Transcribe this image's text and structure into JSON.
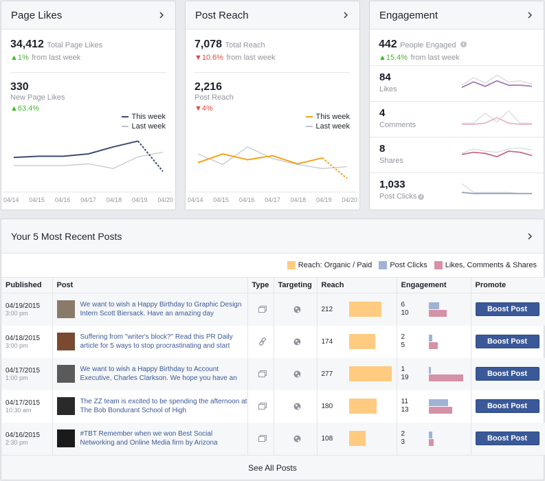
{
  "page_likes": {
    "title": "Page Likes",
    "total": "34,412",
    "total_label": "Total Page Likes",
    "total_change": "1%",
    "total_change_suffix": "from last week",
    "new": "330",
    "new_label": "New Page Likes",
    "new_change": "63.4%",
    "legend_this": "This week",
    "legend_last": "Last week",
    "x_labels": [
      "04/14",
      "04/15",
      "04/16",
      "04/17",
      "04/18",
      "04/19",
      "04/20"
    ],
    "this_week": [
      54,
      56,
      56,
      60,
      72,
      82,
      30
    ],
    "last_week": [
      40,
      40,
      40,
      43,
      35,
      55,
      63
    ],
    "colors": {
      "this": "#3b4b70",
      "last": "#bfc3c9"
    }
  },
  "post_reach": {
    "title": "Post Reach",
    "total": "7,078",
    "total_label": "Total Reach",
    "total_change": "10.6%",
    "total_change_suffix": "from last week",
    "reach": "2,216",
    "reach_label": "Post Reach",
    "reach_change": "4%",
    "legend_this": "This week",
    "legend_last": "Last week",
    "x_labels": [
      "04/14",
      "04/15",
      "04/16",
      "04/17",
      "04/18",
      "04/19",
      "04/20"
    ],
    "this_week": [
      45,
      60,
      50,
      57,
      43,
      53,
      18
    ],
    "last_week": [
      60,
      42,
      72,
      52,
      42,
      35,
      38
    ],
    "colors": {
      "this": "#f7a21b",
      "last": "#bfc3c9"
    }
  },
  "engagement": {
    "title": "Engagement",
    "total": "442",
    "total_label": "People Engaged",
    "total_change": "15.4%",
    "total_change_suffix": "from last week",
    "rows": [
      {
        "value": "84",
        "label": "Likes",
        "color": "#a078b8",
        "this": [
          3,
          8,
          4,
          9,
          5,
          5,
          4
        ],
        "last": [
          5,
          12,
          7,
          14,
          8,
          9,
          6
        ]
      },
      {
        "value": "4",
        "label": "Comments",
        "color": "#e8b6c4",
        "this": [
          2,
          2,
          3,
          8,
          3,
          2,
          2
        ],
        "last": [
          3,
          3,
          12,
          4,
          14,
          3,
          3
        ]
      },
      {
        "value": "8",
        "label": "Shares",
        "color": "#c56c88",
        "this": [
          7,
          9,
          8,
          5,
          10,
          9,
          6
        ],
        "last": [
          8,
          12,
          10,
          9,
          12,
          13,
          11
        ]
      },
      {
        "value": "1,033",
        "label": "Post Clicks",
        "color": "#8c9eba",
        "this": [
          5,
          4,
          4,
          4,
          4,
          4,
          4
        ],
        "last": [
          13,
          5,
          5,
          5,
          5,
          4,
          4
        ]
      }
    ]
  },
  "posts": {
    "title": "Your 5 Most Recent Posts",
    "legend": [
      "Reach: Organic / Paid",
      "Post Clicks",
      "Likes, Comments & Shares"
    ],
    "legend_colors": [
      "#ffcb80",
      "#9fb3d4",
      "#d591a5"
    ],
    "columns": [
      "Published",
      "Post",
      "Type",
      "Targeting",
      "Reach",
      "Engagement",
      "Promote"
    ],
    "boost_label": "Boost Post",
    "see_all": "See All Posts",
    "rows": [
      {
        "date": "04/19/2015",
        "time": "3:00 pm",
        "text": "We want to wish a Happy Birthday to Graphic Design Intern Scott Biersack. Have an amazing day",
        "type": "photo",
        "reach": "212",
        "reach_value": 212,
        "clicks": "6",
        "lcs": "10",
        "clicks_value": 6,
        "lcs_value": 10,
        "thumb": "#8a7a6a"
      },
      {
        "date": "04/18/2015",
        "time": "3:00 pm",
        "text": "Suffering from \"writer's block?\" Read this PR Daily article for 5 ways to stop procrastinating and start",
        "type": "link",
        "reach": "174",
        "reach_value": 174,
        "clicks": "2",
        "lcs": "5",
        "clicks_value": 2,
        "lcs_value": 5,
        "thumb": "#7a4a30"
      },
      {
        "date": "04/17/2015",
        "time": "1:00 pm",
        "text": "We want to wish a Happy Birthday to Account Executive, Charles Clarkson. We hope you have an",
        "type": "photo",
        "reach": "277",
        "reach_value": 277,
        "clicks": "1",
        "lcs": "19",
        "clicks_value": 1,
        "lcs_value": 19,
        "thumb": "#5a5a5a"
      },
      {
        "date": "04/17/2015",
        "time": "10:30 am",
        "text": "The ZZ team is excited to be spending the afternoon at The Bob Bondurant School of High",
        "type": "photo",
        "reach": "180",
        "reach_value": 180,
        "clicks": "11",
        "lcs": "13",
        "clicks_value": 11,
        "lcs_value": 13,
        "thumb": "#2a2a2a"
      },
      {
        "date": "04/16/2015",
        "time": "2:30 pm",
        "text": "#TBT Remember when we won Best Social Networking and Online Media firm by Arizona",
        "type": "photo",
        "reach": "108",
        "reach_value": 108,
        "clicks": "2",
        "lcs": "3",
        "clicks_value": 2,
        "lcs_value": 3,
        "thumb": "#1a1a1a"
      }
    ]
  }
}
